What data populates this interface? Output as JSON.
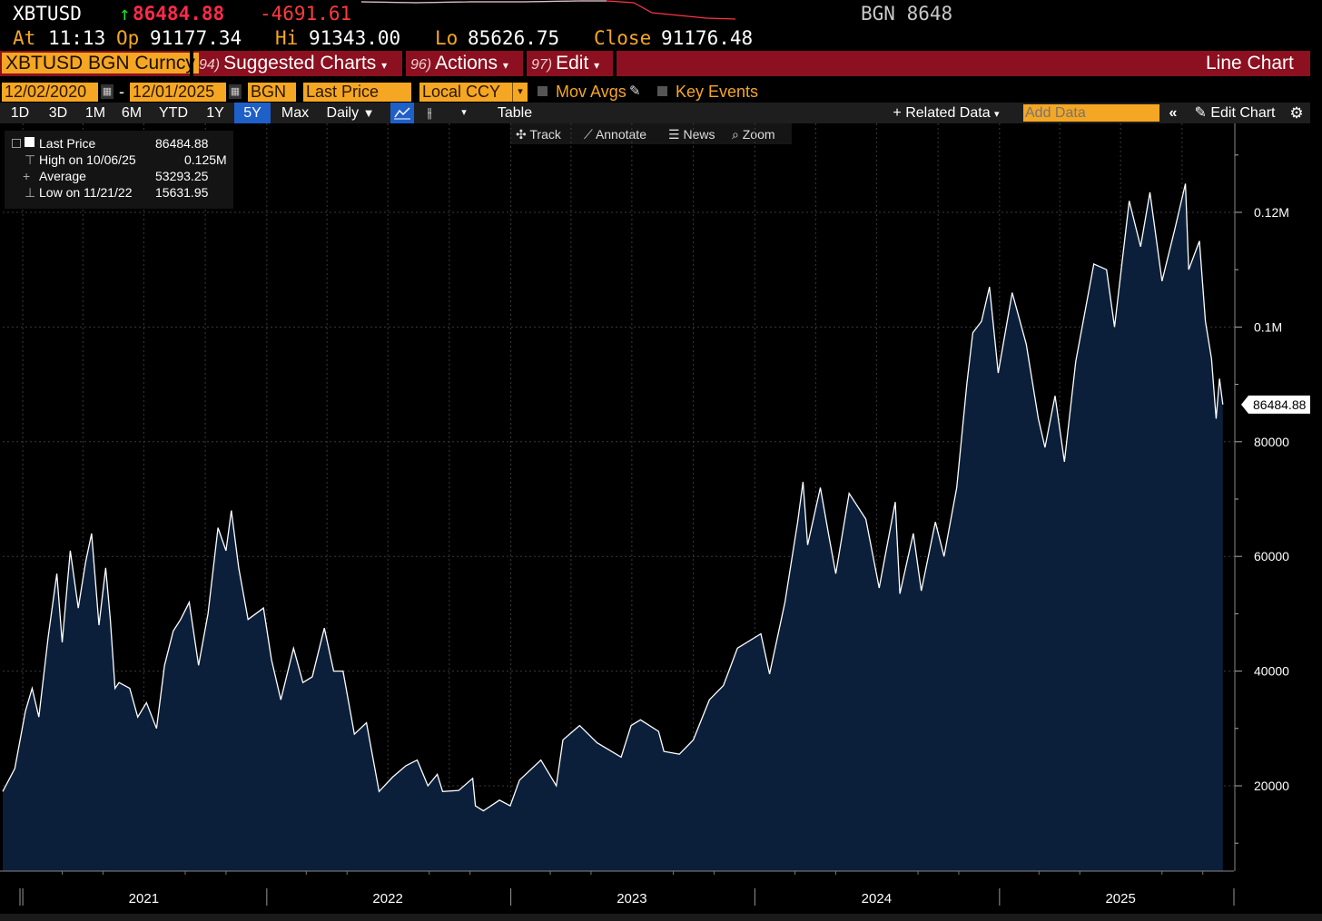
{
  "header": {
    "ticker": "XBTUSD",
    "last_price": "86484.88",
    "change": "-4691.61",
    "source_tag": "BGN 8648",
    "at_label": "At",
    "at_time": "11:13",
    "op_label": "Op",
    "op_value": "91177.34",
    "hi_label": "Hi",
    "hi_value": "91343.00",
    "lo_label": "Lo",
    "lo_value": "85626.75",
    "close_label": "Close",
    "close_value": "91176.48"
  },
  "menubar": {
    "security": "XBTUSD BGN Curncy",
    "suggested_num": "94)",
    "suggested": "Suggested Charts",
    "actions_num": "96)",
    "actions": "Actions",
    "edit_num": "97)",
    "edit": "Edit",
    "chart_type": "Line Chart"
  },
  "fields": {
    "start_date": "12/02/2020",
    "dash": "-",
    "end_date": "12/01/2025",
    "source": "BGN",
    "field": "Last Price",
    "currency": "Local CCY",
    "mov_avgs": "Mov Avgs",
    "key_events": "Key Events"
  },
  "toolbar": {
    "periods": [
      "1D",
      "3D",
      "1M",
      "6M",
      "YTD",
      "1Y",
      "5Y",
      "Max"
    ],
    "active_period": "5Y",
    "frequency": "Daily",
    "table": "Table",
    "related_data": "+ Related Data",
    "add_data_placeholder": "Add Data",
    "edit_chart": "Edit Chart"
  },
  "chart_tools": {
    "track": "Track",
    "annotate": "Annotate",
    "news": "News",
    "zoom": "Zoom"
  },
  "legend": {
    "rows": [
      {
        "label": "Last Price",
        "value": "86484.88"
      },
      {
        "label": "High on 10/06/25",
        "value": "0.125M"
      },
      {
        "label": "Average",
        "value": "53293.25"
      },
      {
        "label": "Low on 11/21/22",
        "value": "15631.95"
      }
    ]
  },
  "colors": {
    "accent": "#f5a623",
    "menubar": "#8c1020",
    "area_fill": "#0b1f3a",
    "line": "#ffffff",
    "active_tab": "#1f5fc8"
  },
  "chart_data": {
    "type": "area",
    "title": "",
    "xlabel": "",
    "ylabel": "",
    "last_value_label": "86484.88",
    "xlim": [
      "2020-12-02",
      "2025-12-01"
    ],
    "ylim": [
      5000,
      135000
    ],
    "y_ticks": [
      {
        "value": 20000,
        "label": "20000"
      },
      {
        "value": 40000,
        "label": "40000"
      },
      {
        "value": 60000,
        "label": "60000"
      },
      {
        "value": 80000,
        "label": "80000"
      },
      {
        "value": 100000,
        "label": "0.1M"
      },
      {
        "value": 120000,
        "label": "0.12M"
      }
    ],
    "x_ticks": [
      {
        "date": "2021-07-01",
        "label": "2021"
      },
      {
        "date": "2022-07-01",
        "label": "2022"
      },
      {
        "date": "2023-07-01",
        "label": "2023"
      },
      {
        "date": "2024-07-01",
        "label": "2024"
      },
      {
        "date": "2025-07-01",
        "label": "2025"
      }
    ],
    "year_dividers": [
      "2021-01-01",
      "2022-01-01",
      "2023-01-01",
      "2024-01-01",
      "2025-01-01"
    ],
    "grid": true,
    "series": [
      {
        "name": "Last Price",
        "points": [
          [
            "2020-12-02",
            19000
          ],
          [
            "2020-12-20",
            23000
          ],
          [
            "2021-01-05",
            33000
          ],
          [
            "2021-01-15",
            37000
          ],
          [
            "2021-01-25",
            32000
          ],
          [
            "2021-02-08",
            46000
          ],
          [
            "2021-02-21",
            57000
          ],
          [
            "2021-03-01",
            45000
          ],
          [
            "2021-03-13",
            61000
          ],
          [
            "2021-03-25",
            51000
          ],
          [
            "2021-04-05",
            59000
          ],
          [
            "2021-04-14",
            64000
          ],
          [
            "2021-04-25",
            48000
          ],
          [
            "2021-05-05",
            58000
          ],
          [
            "2021-05-12",
            49000
          ],
          [
            "2021-05-19",
            37000
          ],
          [
            "2021-05-25",
            38000
          ],
          [
            "2021-06-10",
            37000
          ],
          [
            "2021-06-22",
            32000
          ],
          [
            "2021-07-05",
            34500
          ],
          [
            "2021-07-20",
            30000
          ],
          [
            "2021-08-01",
            41000
          ],
          [
            "2021-08-14",
            47000
          ],
          [
            "2021-08-25",
            49000
          ],
          [
            "2021-09-07",
            52000
          ],
          [
            "2021-09-21",
            41000
          ],
          [
            "2021-10-05",
            50000
          ],
          [
            "2021-10-20",
            65000
          ],
          [
            "2021-11-01",
            61000
          ],
          [
            "2021-11-09",
            68000
          ],
          [
            "2021-11-20",
            58000
          ],
          [
            "2021-12-04",
            49000
          ],
          [
            "2021-12-27",
            51000
          ],
          [
            "2022-01-08",
            42000
          ],
          [
            "2022-01-22",
            35000
          ],
          [
            "2022-02-10",
            44000
          ],
          [
            "2022-02-24",
            38000
          ],
          [
            "2022-03-10",
            39000
          ],
          [
            "2022-03-28",
            47500
          ],
          [
            "2022-04-11",
            40000
          ],
          [
            "2022-04-25",
            40000
          ],
          [
            "2022-05-12",
            29000
          ],
          [
            "2022-05-30",
            31000
          ],
          [
            "2022-06-18",
            19000
          ],
          [
            "2022-07-08",
            21500
          ],
          [
            "2022-07-28",
            23500
          ],
          [
            "2022-08-14",
            24500
          ],
          [
            "2022-08-30",
            20000
          ],
          [
            "2022-09-13",
            22000
          ],
          [
            "2022-09-21",
            19000
          ],
          [
            "2022-10-15",
            19200
          ],
          [
            "2022-11-05",
            21300
          ],
          [
            "2022-11-09",
            16500
          ],
          [
            "2022-11-21",
            15632
          ],
          [
            "2022-12-15",
            17500
          ],
          [
            "2022-12-31",
            16500
          ],
          [
            "2023-01-14",
            21000
          ],
          [
            "2023-02-15",
            24500
          ],
          [
            "2023-03-10",
            20000
          ],
          [
            "2023-03-20",
            28000
          ],
          [
            "2023-04-14",
            30500
          ],
          [
            "2023-05-10",
            27500
          ],
          [
            "2023-06-15",
            25000
          ],
          [
            "2023-06-30",
            30500
          ],
          [
            "2023-07-14",
            31500
          ],
          [
            "2023-08-10",
            29500
          ],
          [
            "2023-08-18",
            26000
          ],
          [
            "2023-09-10",
            25500
          ],
          [
            "2023-10-01",
            28000
          ],
          [
            "2023-10-25",
            35000
          ],
          [
            "2023-11-15",
            37500
          ],
          [
            "2023-12-06",
            44000
          ],
          [
            "2024-01-10",
            46500
          ],
          [
            "2024-01-23",
            39500
          ],
          [
            "2024-02-15",
            52000
          ],
          [
            "2024-03-05",
            66000
          ],
          [
            "2024-03-13",
            73000
          ],
          [
            "2024-03-20",
            62000
          ],
          [
            "2024-04-08",
            72000
          ],
          [
            "2024-04-20",
            64000
          ],
          [
            "2024-05-01",
            57000
          ],
          [
            "2024-05-21",
            71000
          ],
          [
            "2024-06-15",
            66500
          ],
          [
            "2024-07-05",
            54500
          ],
          [
            "2024-07-29",
            69500
          ],
          [
            "2024-08-05",
            53500
          ],
          [
            "2024-08-25",
            64000
          ],
          [
            "2024-09-06",
            54000
          ],
          [
            "2024-09-27",
            66000
          ],
          [
            "2024-10-10",
            60000
          ],
          [
            "2024-10-29",
            72000
          ],
          [
            "2024-11-13",
            90000
          ],
          [
            "2024-11-22",
            99000
          ],
          [
            "2024-12-05",
            101000
          ],
          [
            "2024-12-17",
            107000
          ],
          [
            "2024-12-30",
            92000
          ],
          [
            "2025-01-20",
            106000
          ],
          [
            "2025-02-10",
            97000
          ],
          [
            "2025-02-28",
            84000
          ],
          [
            "2025-03-10",
            79000
          ],
          [
            "2025-03-25",
            88000
          ],
          [
            "2025-04-08",
            76500
          ],
          [
            "2025-04-25",
            94000
          ],
          [
            "2025-05-22",
            111000
          ],
          [
            "2025-06-10",
            110000
          ],
          [
            "2025-06-22",
            100000
          ],
          [
            "2025-07-14",
            122000
          ],
          [
            "2025-07-31",
            114000
          ],
          [
            "2025-08-14",
            123500
          ],
          [
            "2025-09-01",
            108000
          ],
          [
            "2025-09-20",
            117000
          ],
          [
            "2025-10-06",
            125000
          ],
          [
            "2025-10-11",
            110000
          ],
          [
            "2025-10-27",
            115000
          ],
          [
            "2025-11-05",
            101000
          ],
          [
            "2025-11-14",
            94500
          ],
          [
            "2025-11-21",
            84000
          ],
          [
            "2025-11-26",
            91000
          ],
          [
            "2025-12-01",
            86485
          ]
        ]
      }
    ]
  }
}
